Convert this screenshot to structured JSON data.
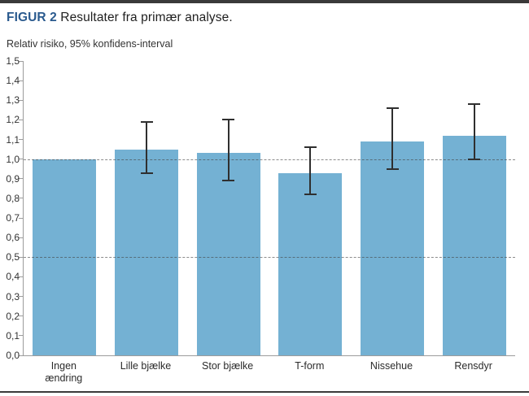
{
  "header": {
    "figure_label": "FIGUR 2",
    "figure_title": "Resultater fra primær analyse.",
    "subtitle": "Relativ risiko, 95% konfidens-interval"
  },
  "colors": {
    "bar_fill": "#74b1d3",
    "error_bar": "#2f2f2f",
    "axis": "#9c9c9c",
    "figure_label_blue": "#2a5a8e",
    "rule_dark": "#3a3a3a"
  },
  "chart_data": {
    "type": "bar",
    "title": "FIGUR 2 Resultater fra primær analyse.",
    "ylabel": "Relativ risiko, 95% konfidens-interval",
    "ylim": [
      0,
      1.5
    ],
    "ytick_step": 0.1,
    "ytick_labels": [
      "0,0",
      "0,1",
      "0,2",
      "0,3",
      "0,4",
      "0,5",
      "0,6",
      "0,7",
      "0,8",
      "0,9",
      "1,0",
      "1,1",
      "1,2",
      "1,3",
      "1,4",
      "1,5"
    ],
    "reference_lines": [
      1.0,
      0.5
    ],
    "grid": false,
    "legend": false,
    "categories": [
      "Ingen\nændring",
      "Lille bjælke",
      "Stor bjælke",
      "T-form",
      "Nissehue",
      "Rensdyr"
    ],
    "values": [
      1.0,
      1.05,
      1.03,
      0.93,
      1.09,
      1.12
    ],
    "ci_low": [
      null,
      0.93,
      0.89,
      0.82,
      0.95,
      1.0
    ],
    "ci_high": [
      null,
      1.19,
      1.2,
      1.06,
      1.26,
      1.28
    ]
  }
}
